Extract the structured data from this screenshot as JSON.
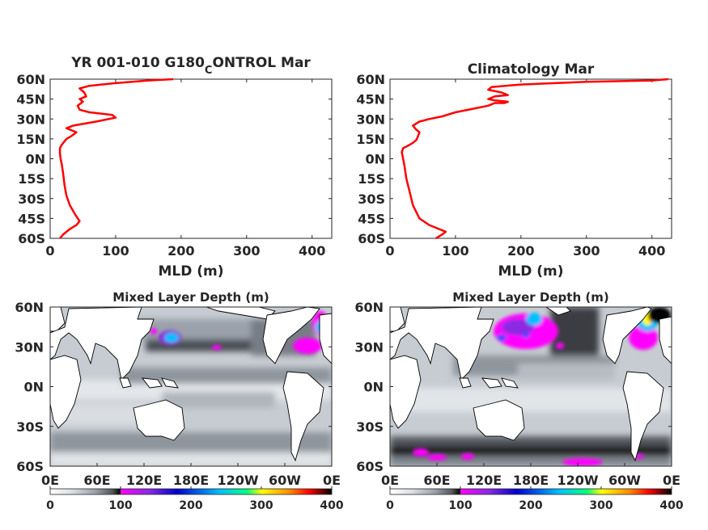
{
  "chart_data": [
    {
      "type": "line",
      "title_main": "YR 001-010 G180",
      "title_sub": "C",
      "title_tail": "ONTROL Mar",
      "xlabel": "MLD (m)",
      "ylabel": "",
      "xlim": [
        0,
        430
      ],
      "ylim": [
        -60,
        60
      ],
      "xticks": [
        0,
        100,
        200,
        300,
        400
      ],
      "yticks": [
        60,
        45,
        30,
        15,
        0,
        -15,
        -30,
        -45,
        -60
      ],
      "ytick_labels": [
        "60N",
        "45N",
        "30N",
        "15N",
        "0N",
        "15S",
        "30S",
        "45S",
        "60S"
      ],
      "line_color": "#ff0000",
      "series": [
        {
          "x": [
            15,
            20,
            30,
            40,
            45,
            38,
            30,
            25,
            22,
            20,
            18,
            16,
            15,
            15,
            17,
            20,
            25,
            32,
            40,
            30,
            25,
            35,
            70,
            100,
            95,
            60,
            45,
            42,
            50,
            45,
            55,
            52,
            45,
            60,
            100,
            150,
            188
          ],
          "y": [
            -60,
            -57,
            -53,
            -50,
            -47,
            -42,
            -35,
            -28,
            -20,
            -12,
            -5,
            0,
            4,
            8,
            10,
            12,
            15,
            17,
            20,
            22,
            23,
            25,
            28,
            31,
            33,
            35,
            37,
            40,
            43,
            45,
            47,
            50,
            53,
            55,
            57,
            59,
            60
          ]
        }
      ]
    },
    {
      "type": "line",
      "title": "Climatology Mar",
      "xlabel": "MLD (m)",
      "ylabel": "",
      "xlim": [
        0,
        430
      ],
      "ylim": [
        -60,
        60
      ],
      "xticks": [
        0,
        100,
        200,
        300,
        400
      ],
      "yticks": [
        60,
        45,
        30,
        15,
        0,
        -15,
        -30,
        -45,
        -60
      ],
      "ytick_labels": [
        "60N",
        "45N",
        "30N",
        "15N",
        "0N",
        "15S",
        "30S",
        "45S",
        "60S"
      ],
      "line_color": "#ff0000",
      "series": [
        {
          "x": [
            70,
            80,
            85,
            60,
            45,
            35,
            30,
            25,
            22,
            20,
            18,
            20,
            28,
            35,
            40,
            42,
            45,
            40,
            35,
            45,
            60,
            80,
            100,
            130,
            150,
            155,
            160,
            175,
            180,
            160,
            150,
            155,
            160,
            180,
            170,
            150,
            155,
            200,
            300,
            400,
            425
          ],
          "y": [
            -60,
            -57,
            -55,
            -50,
            -45,
            -35,
            -25,
            -15,
            -5,
            0,
            5,
            8,
            10,
            12,
            14,
            16,
            20,
            22,
            25,
            28,
            30,
            32,
            35,
            38,
            40,
            41,
            42,
            42,
            43,
            44,
            45,
            46,
            47,
            48,
            50,
            52,
            54,
            56,
            58,
            59,
            60
          ]
        }
      ]
    },
    {
      "type": "heatmap",
      "title": "Mixed Layer Depth (m)",
      "xtick_labels": [
        "0E",
        "60E",
        "120E",
        "180E",
        "120W",
        "60W",
        "0E"
      ],
      "ytick_labels": [
        "60N",
        "30N",
        "0N",
        "30S",
        "60S"
      ],
      "colorbar_ticks": [
        0,
        100,
        200,
        300,
        400
      ],
      "clim": [
        0,
        400
      ],
      "colormap": [
        "#ffffff",
        "#d9dde2",
        "#9aa1aa",
        "#55585f",
        "#000000",
        "#ff00ff",
        "#8a2be2",
        "#0000cd",
        "#00bfff",
        "#00ff7f",
        "#ffff00",
        "#ff8c00",
        "#ff0000",
        "#8b0000",
        "#000000"
      ],
      "land_color": "#ffffff",
      "coast_color": "#000000"
    },
    {
      "type": "heatmap",
      "title": "Mixed Layer Depth (m)",
      "xtick_labels": [
        "0E",
        "60E",
        "120E",
        "180E",
        "120W",
        "60W",
        "0E"
      ],
      "ytick_labels": [
        "60N",
        "30N",
        "0N",
        "30S",
        "60S"
      ],
      "colorbar_ticks": [
        0,
        100,
        200,
        300,
        400
      ],
      "clim": [
        0,
        400
      ],
      "colormap": [
        "#ffffff",
        "#d9dde2",
        "#9aa1aa",
        "#55585f",
        "#000000",
        "#ff00ff",
        "#8a2be2",
        "#0000cd",
        "#00bfff",
        "#00ff7f",
        "#ffff00",
        "#ff8c00",
        "#ff0000",
        "#8b0000",
        "#000000"
      ],
      "land_color": "#ffffff",
      "coast_color": "#000000"
    }
  ]
}
